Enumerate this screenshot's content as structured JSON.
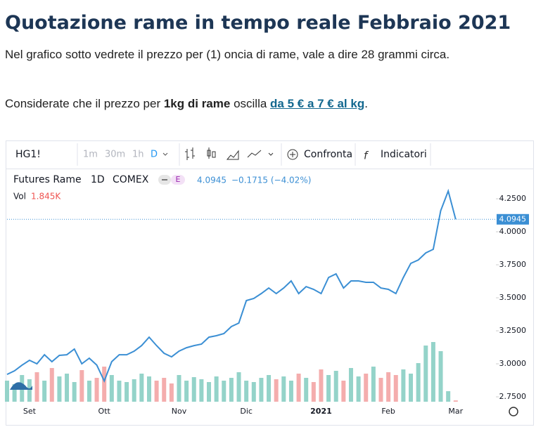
{
  "header": {
    "title": "Quotazione rame in tempo reale Febbraio 2021",
    "intro": "Nel grafico sotto vedrete il prezzo per (1) oncia di rame, vale a dire 28 grammi circa.",
    "note": {
      "before": "Considerate che il prezzo per ",
      "bold": "1kg di rame",
      "middle": " oscilla ",
      "link": "da 5 € a 7 € al kg",
      "after": "."
    }
  },
  "toolbar": {
    "symbol": "HG1!",
    "intervals": [
      "1m",
      "30m",
      "1h",
      "D"
    ],
    "compare": "Confronta",
    "indicators": "Indicatori"
  },
  "legend": {
    "name": "Futures Rame",
    "interval": "1D",
    "exchange": "COMEX",
    "badge": "E",
    "change": "−0.1715 (−4.02%)",
    "vol": "Vol"
  },
  "chart_data": {
    "type": "line",
    "categories": [
      null,
      null,
      null,
      "Set",
      null,
      null,
      null,
      null,
      null,
      null,
      null,
      null,
      null,
      "Ott",
      null,
      null,
      null,
      null,
      null,
      null,
      null,
      null,
      null,
      "Nov",
      null,
      null,
      null,
      null,
      null,
      null,
      null,
      null,
      "Dic",
      null,
      null,
      null,
      null,
      null,
      null,
      null,
      null,
      null,
      "2021",
      null,
      null,
      null,
      null,
      null,
      null,
      null,
      null,
      "Feb",
      null,
      null,
      null,
      null,
      null,
      null,
      null,
      null,
      "Mar"
    ],
    "series": [
      {
        "name": "Futures Rame",
        "color": "#3b8fd4",
        "values": [
          2.92,
          2.947,
          2.99,
          3.027,
          3.0,
          3.069,
          3.016,
          3.064,
          3.069,
          3.112,
          3.0,
          3.043,
          2.99,
          2.87,
          3.016,
          3.069,
          3.069,
          3.096,
          3.138,
          3.202,
          3.138,
          3.08,
          3.053,
          3.096,
          3.122,
          3.138,
          3.149,
          3.202,
          3.213,
          3.229,
          3.282,
          3.309,
          3.479,
          3.495,
          3.532,
          3.574,
          3.532,
          3.574,
          3.628,
          3.532,
          3.585,
          3.564,
          3.532,
          3.654,
          3.681,
          3.574,
          3.628,
          3.628,
          3.617,
          3.617,
          3.574,
          3.564,
          3.532,
          3.654,
          3.761,
          3.787,
          3.84,
          3.867,
          4.16,
          4.309,
          4.0945
        ]
      },
      {
        "name": "Vol",
        "up_color": "#94d3c9",
        "down_color": "#f4adad",
        "values": [
          30,
          25,
          38,
          32,
          42,
          30,
          48,
          36,
          40,
          28,
          45,
          30,
          34,
          50,
          38,
          30,
          28,
          32,
          40,
          36,
          30,
          34,
          26,
          38,
          30,
          35,
          32,
          28,
          36,
          30,
          34,
          42,
          30,
          28,
          34,
          38,
          32,
          36,
          30,
          40,
          34,
          28,
          46,
          38,
          44,
          30,
          48,
          36,
          40,
          50,
          34,
          42,
          38,
          46,
          40,
          55,
          80,
          85,
          72,
          15,
          1.845
        ],
        "value_labels_last": "1.845K"
      }
    ],
    "ylim": [
      2.713,
      4.463
    ],
    "yticks": [
      {
        "value": 2.75,
        "label": "2.7500"
      },
      {
        "value": 3.0,
        "label": "3.0000"
      },
      {
        "value": 3.25,
        "label": "3.2500"
      },
      {
        "value": 3.5,
        "label": "3.5000"
      },
      {
        "value": 3.75,
        "label": "3.7500"
      },
      {
        "value": 4.0,
        "label": "4.0000"
      },
      {
        "value": 4.25,
        "label": "4.2500"
      }
    ]
  }
}
